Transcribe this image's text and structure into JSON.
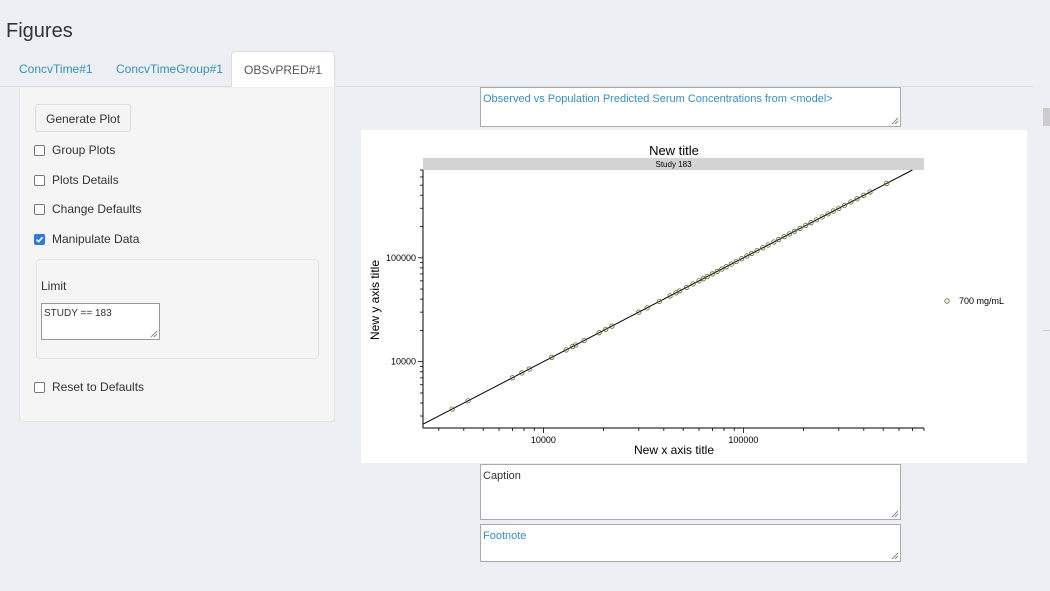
{
  "page": {
    "heading": "Figures"
  },
  "tabs": [
    {
      "label": "ConcvTime#1"
    },
    {
      "label": "ConcvTimeGroup#1"
    },
    {
      "label": "OBSvPRED#1"
    }
  ],
  "sidebar": {
    "generate_label": "Generate Plot",
    "options": [
      {
        "label": "Group Plots",
        "checked": false
      },
      {
        "label": "Plots Details",
        "checked": false
      },
      {
        "label": "Change Defaults",
        "checked": false
      },
      {
        "label": "Manipulate Data",
        "checked": true
      }
    ],
    "limit_label": "Limit",
    "limit_value": "STUDY == 183",
    "reset_label": "Reset to Defaults"
  },
  "title_input": {
    "value": "Observed vs Population Predicted Serum Concentrations from <model>"
  },
  "caption_input": {
    "value": "Caption"
  },
  "footnote_input": {
    "value": "Footnote"
  },
  "colors": {
    "link": "#3c8dbc",
    "checkbox": "#2f7bd6",
    "point": "#556b2f",
    "background": "#ecf0f5"
  },
  "chart_data": {
    "type": "scatter",
    "title": "New title",
    "panel_label": "Study 183",
    "xlabel": "New x axis title",
    "ylabel": "New y axis title",
    "x_scale": "log",
    "y_scale": "log",
    "x_ticks": [
      10000,
      100000
    ],
    "x_tick_labels": [
      "10000",
      "100000"
    ],
    "y_ticks": [
      10000,
      100000
    ],
    "y_tick_labels": [
      "10000",
      "100000"
    ],
    "xlim": [
      2500,
      800000
    ],
    "ylim": [
      2300,
      700000
    ],
    "legend": [
      {
        "name": "700 mg/mL",
        "marker": "open-circle"
      }
    ],
    "legend_placement": "right",
    "identity_line": true,
    "series": [
      {
        "name": "700 mg/mL",
        "points": [
          [
            3500,
            3500
          ],
          [
            4200,
            4200
          ],
          [
            7000,
            7000
          ],
          [
            7800,
            7800
          ],
          [
            8500,
            8500
          ],
          [
            11000,
            11000
          ],
          [
            13000,
            13000
          ],
          [
            14000,
            14000
          ],
          [
            14500,
            14500
          ],
          [
            16000,
            16000
          ],
          [
            19000,
            19000
          ],
          [
            20500,
            20500
          ],
          [
            22000,
            22000
          ],
          [
            30000,
            30000
          ],
          [
            33000,
            33000
          ],
          [
            38000,
            38000
          ],
          [
            43000,
            43000
          ],
          [
            46000,
            46000
          ],
          [
            48000,
            48000
          ],
          [
            52000,
            52000
          ],
          [
            56000,
            56000
          ],
          [
            60000,
            60000
          ],
          [
            63000,
            63000
          ],
          [
            66000,
            66000
          ],
          [
            70000,
            70000
          ],
          [
            74000,
            74000
          ],
          [
            78000,
            78000
          ],
          [
            82000,
            82000
          ],
          [
            87000,
            87000
          ],
          [
            92000,
            92000
          ],
          [
            98000,
            98000
          ],
          [
            104000,
            104000
          ],
          [
            110000,
            110000
          ],
          [
            117000,
            117000
          ],
          [
            125000,
            125000
          ],
          [
            133000,
            133000
          ],
          [
            142000,
            142000
          ],
          [
            150000,
            150000
          ],
          [
            160000,
            160000
          ],
          [
            170000,
            170000
          ],
          [
            180000,
            180000
          ],
          [
            192000,
            192000
          ],
          [
            205000,
            205000
          ],
          [
            218000,
            218000
          ],
          [
            232000,
            232000
          ],
          [
            248000,
            248000
          ],
          [
            265000,
            265000
          ],
          [
            282000,
            282000
          ],
          [
            300000,
            300000
          ],
          [
            320000,
            320000
          ],
          [
            345000,
            345000
          ],
          [
            370000,
            370000
          ],
          [
            400000,
            400000
          ],
          [
            430000,
            430000
          ],
          [
            520000,
            520000
          ]
        ]
      }
    ]
  }
}
